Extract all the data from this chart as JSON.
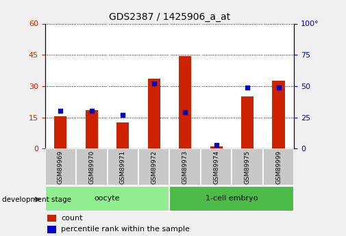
{
  "title": "GDS2387 / 1425906_a_at",
  "samples": [
    "GSM89969",
    "GSM89970",
    "GSM89971",
    "GSM89972",
    "GSM89973",
    "GSM89974",
    "GSM89975",
    "GSM89999"
  ],
  "counts": [
    15.5,
    18.5,
    12.5,
    33.5,
    44.5,
    1.0,
    25.0,
    32.5
  ],
  "percentile_ranks": [
    30,
    30,
    27,
    52,
    29,
    3,
    49,
    49
  ],
  "group_labels": [
    "oocyte",
    "1-cell embryo"
  ],
  "group_colors": [
    "#90EE90",
    "#4CBB47"
  ],
  "left_ylim": [
    0,
    60
  ],
  "right_ylim": [
    0,
    100
  ],
  "left_yticks": [
    0,
    15,
    30,
    45,
    60
  ],
  "right_yticks": [
    0,
    25,
    50,
    75,
    100
  ],
  "right_yticklabels": [
    "0",
    "25",
    "50",
    "75",
    "100°"
  ],
  "bar_color": "#CC2200",
  "dot_color": "#0000CC",
  "bg_color": "#F0F0F0",
  "plot_bg": "#FFFFFF",
  "label_count": "count",
  "label_percentile": "percentile rank within the sample",
  "xlabel_stage": "development stage"
}
